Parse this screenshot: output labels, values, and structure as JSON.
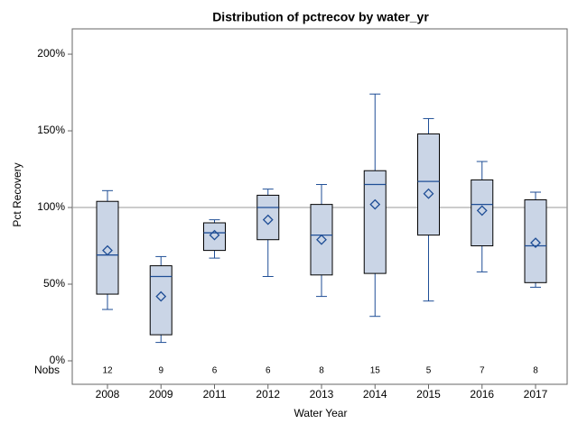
{
  "chart_data": {
    "type": "box",
    "title": "Distribution of pctrecov by water_yr",
    "x_label": "Water Year",
    "y_label": "Pct Recovery",
    "categories": [
      "2008",
      "2009",
      "2011",
      "2012",
      "2013",
      "2014",
      "2015",
      "2016",
      "2017"
    ],
    "min": [
      33.5,
      12,
      67,
      55,
      42,
      29,
      39,
      58,
      48
    ],
    "q1": [
      43.5,
      17,
      72,
      79,
      56,
      57,
      82,
      75,
      51
    ],
    "median": [
      69,
      55,
      83.5,
      100,
      82,
      115,
      117,
      102,
      75
    ],
    "q3": [
      104,
      62,
      90,
      108,
      102,
      124,
      148,
      118,
      105
    ],
    "max": [
      111,
      68,
      92,
      112,
      115,
      174,
      158,
      130,
      110
    ],
    "mean": [
      72,
      42,
      82,
      92,
      79,
      102,
      109,
      98,
      77
    ],
    "nobs_label": "Nobs",
    "nobs": [
      12,
      9,
      6,
      6,
      8,
      15,
      5,
      7,
      8
    ],
    "refline": 100,
    "box_color": "#cad5e6",
    "line_color": "#1f4e96",
    "ylim": [
      -15.3,
      216.5
    ],
    "yticks": [
      {
        "value": 0,
        "label": "0%"
      },
      {
        "value": 50,
        "label": "50%"
      },
      {
        "value": 100,
        "label": "100%"
      },
      {
        "value": 150,
        "label": "150%"
      },
      {
        "value": 200,
        "label": "200%"
      }
    ]
  }
}
